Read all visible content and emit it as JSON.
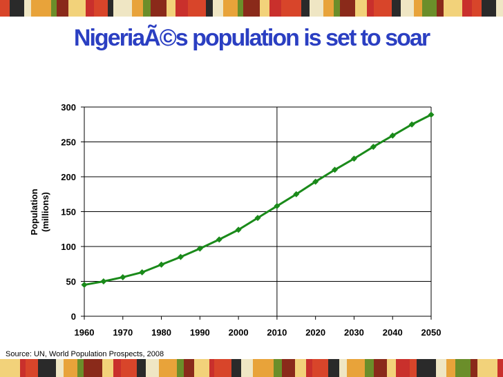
{
  "slide": {
    "title": "NigeriaÃ©s population is set to soar",
    "source": "Source: UN, World Population Prospects, 2008"
  },
  "colors": {
    "title": "#2b3fc2",
    "series_line": "#1a8a1a",
    "grid": "#000000",
    "band_palette": [
      "#d8452a",
      "#e8a33a",
      "#f2d27a",
      "#2a2a2a",
      "#6b8e2a",
      "#c9302c",
      "#efe6c4",
      "#8a2a1a"
    ]
  },
  "chart_data": {
    "type": "line",
    "title": "",
    "xlabel": "",
    "ylabel": "Population\n(millions)",
    "xlim": [
      1960,
      2050
    ],
    "ylim": [
      0,
      300
    ],
    "x_ticks": [
      1960,
      1970,
      1980,
      1990,
      2000,
      2010,
      2020,
      2030,
      2040,
      2050
    ],
    "y_ticks": [
      0,
      50,
      100,
      150,
      200,
      250,
      300
    ],
    "vertical_grid_at": [
      2010
    ],
    "horizontal_grid": true,
    "series": [
      {
        "x": [
          1960,
          1965,
          1970,
          1975,
          1980,
          1985,
          1990,
          1995,
          2000,
          2005,
          2010,
          2015,
          2020,
          2025,
          2030,
          2035,
          2040,
          2045,
          2050
        ],
        "values": [
          45,
          50,
          56,
          63,
          74,
          85,
          97,
          110,
          124,
          141,
          158,
          175,
          193,
          210,
          226,
          243,
          259,
          275,
          289
        ]
      }
    ]
  }
}
